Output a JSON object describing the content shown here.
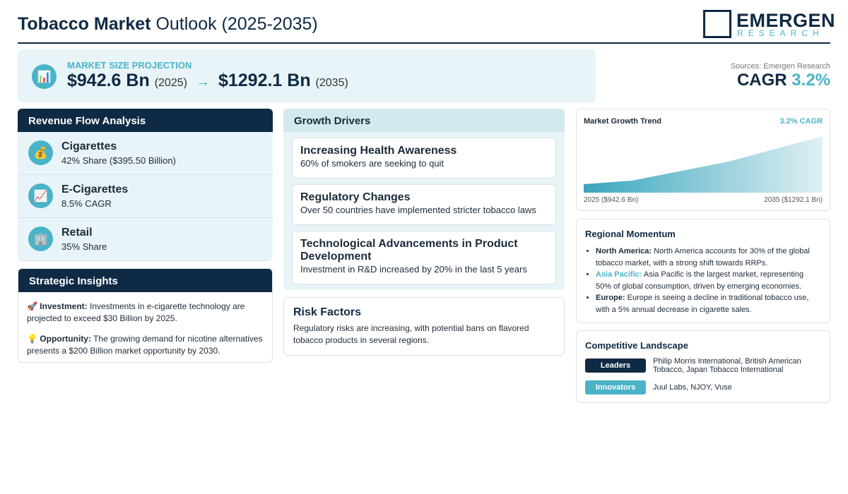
{
  "header": {
    "title_bold": "Tobacco Market",
    "title_rest": "Outlook (2025-2035)",
    "logo_main": "EMERGEN",
    "logo_sub": "RESEARCH"
  },
  "projection": {
    "icon": "📊",
    "label": "MARKET SIZE PROJECTION",
    "start_value": "$942.6 Bn",
    "start_year": "(2025)",
    "arrow": "→",
    "end_value": "$1292.1 Bn",
    "end_year": "(2035)"
  },
  "cagr": {
    "source": "Sources: Emergen Research",
    "label": "CAGR",
    "value": "3.2%"
  },
  "revenue": {
    "title": "Revenue Flow Analysis",
    "items": [
      {
        "icon": "💰",
        "name": "Cigarettes",
        "detail": "42% Share ($395.50 Billion)"
      },
      {
        "icon": "📈",
        "name": "E-Cigarettes",
        "detail": "8.5% CAGR"
      },
      {
        "icon": "🏢",
        "name": "Retail",
        "detail": "35% Share"
      }
    ]
  },
  "insights": {
    "title": "Strategic Insights",
    "items": [
      {
        "icon": "🚀",
        "label": "Investment:",
        "text": "Investments in e-cigarette technology are projected to exceed $30 Billion by 2025."
      },
      {
        "icon": "💡",
        "label": "Opportunity:",
        "text": "The growing demand for nicotine alternatives presents a $200 Billion market opportunity by 2030."
      }
    ]
  },
  "drivers": {
    "title": "Growth Drivers",
    "items": [
      {
        "name": "Increasing Health Awareness",
        "detail": "60% of smokers are seeking to quit"
      },
      {
        "name": "Regulatory Changes",
        "detail": "Over 50 countries have implemented stricter tobacco laws"
      },
      {
        "name": "Technological Advancements in Product Development",
        "detail": "Investment in R&D increased by 20% in the last 5 years"
      }
    ]
  },
  "risk": {
    "title": "Risk Factors",
    "text": "Regulatory risks are increasing, with potential bans on flavored tobacco products in several regions."
  },
  "trend": {
    "title": "Market Growth Trend",
    "badge": "3.2% CAGR",
    "start_label": "2025 ($942.6 Bn)",
    "end_label": "2035 ($1292.1 Bn)"
  },
  "regional": {
    "title": "Regional Momentum",
    "items": [
      {
        "region": "North America:",
        "text": "North America accounts for 30% of the global tobacco market, with a strong shift towards RRPs."
      },
      {
        "region": "Asia Pacific:",
        "text": "Asia Pacific is the largest market, representing 50% of global consumption, driven by emerging economies."
      },
      {
        "region": "Europe:",
        "text": "Europe is seeing a decline in traditional tobacco use, with a 5% annual decrease in cigarette sales."
      }
    ]
  },
  "competitive": {
    "title": "Competitive Landscape",
    "rows": [
      {
        "tag": "Leaders",
        "names": "Philip Morris International, British American Tobacco, Japan Tobacco International"
      },
      {
        "tag": "Innovators",
        "names": "Juul Labs, NJOY, Vuse"
      }
    ]
  }
}
